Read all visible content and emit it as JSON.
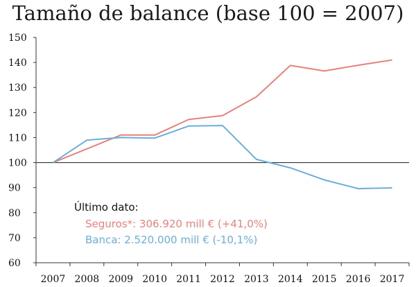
{
  "chart_data": {
    "type": "line",
    "title": "Tamaño de balance (base 100 = 2007)",
    "xlabel": "",
    "ylabel": "",
    "ylim": [
      60,
      150
    ],
    "yticks": [
      60,
      70,
      80,
      90,
      100,
      110,
      120,
      130,
      140,
      150
    ],
    "categories": [
      "2007",
      "2008",
      "2009",
      "2010",
      "2011",
      "2012",
      "2013",
      "2014",
      "2015",
      "2016",
      "2017"
    ],
    "reference_line": 100,
    "series": [
      {
        "name": "Seguros*",
        "color": "#e8817a",
        "values": [
          100,
          105.5,
          111,
          111,
          117.2,
          118.8,
          126.3,
          138.8,
          136.6,
          138.9,
          141
        ]
      },
      {
        "name": "Banca",
        "color": "#6aaed9",
        "values": [
          100,
          109,
          110,
          109.8,
          114.6,
          114.8,
          101.3,
          97.9,
          93.1,
          89.6,
          89.9
        ]
      }
    ],
    "annotation": {
      "heading": "Último dato:",
      "lines": [
        {
          "text": "Seguros*: 306.920 mill € (+41,0%)",
          "color": "#e8817a"
        },
        {
          "text": "Banca:  2.520.000 mill € (-10,1%)",
          "color": "#6aaed9"
        }
      ]
    }
  }
}
